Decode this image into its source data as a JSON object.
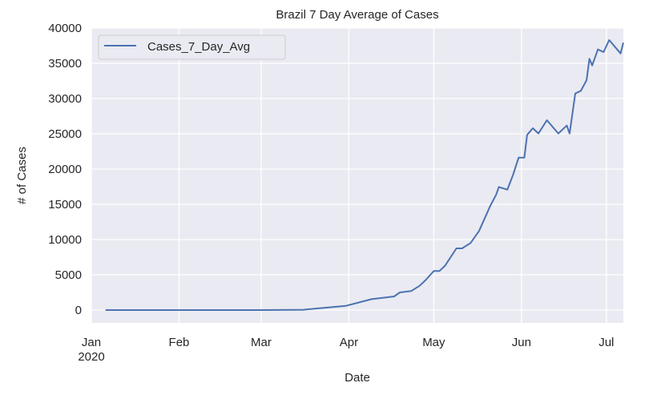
{
  "chart_data": {
    "type": "line",
    "title": "Brazil 7 Day Average of Cases",
    "xlabel": "Date",
    "ylabel": "# of Cases",
    "ylim": [
      -1800,
      40000
    ],
    "xlim": [
      "2020-01-01",
      "2020-07-07"
    ],
    "grid": true,
    "legend": {
      "position": "top-left",
      "entries": [
        "Cases_7_Day_Avg"
      ]
    },
    "yticks": [
      0,
      5000,
      10000,
      15000,
      20000,
      25000,
      30000,
      35000,
      40000
    ],
    "xticks": [
      {
        "date": "2020-01-01",
        "label": "Jan",
        "sublabel": "2020"
      },
      {
        "date": "2020-02-01",
        "label": "Feb"
      },
      {
        "date": "2020-03-01",
        "label": "Mar"
      },
      {
        "date": "2020-04-01",
        "label": "Apr"
      },
      {
        "date": "2020-05-01",
        "label": "May"
      },
      {
        "date": "2020-06-01",
        "label": "Jun"
      },
      {
        "date": "2020-07-01",
        "label": "Jul"
      }
    ],
    "series": [
      {
        "name": "Cases_7_Day_Avg",
        "color": "#4c72b0",
        "points": [
          [
            "2020-01-06",
            0
          ],
          [
            "2020-03-01",
            0
          ],
          [
            "2020-03-16",
            50
          ],
          [
            "2020-03-31",
            600
          ],
          [
            "2020-04-09",
            1550
          ],
          [
            "2020-04-17",
            1930
          ],
          [
            "2020-04-19",
            2500
          ],
          [
            "2020-04-23",
            2690
          ],
          [
            "2020-04-26",
            3440
          ],
          [
            "2020-04-28",
            4200
          ],
          [
            "2020-05-01",
            5530
          ],
          [
            "2020-05-03",
            5530
          ],
          [
            "2020-05-05",
            6290
          ],
          [
            "2020-05-09",
            8750
          ],
          [
            "2020-05-11",
            8750
          ],
          [
            "2020-05-14",
            9510
          ],
          [
            "2020-05-17",
            11220
          ],
          [
            "2020-05-21",
            14810
          ],
          [
            "2020-05-23",
            16330
          ],
          [
            "2020-05-24",
            17460
          ],
          [
            "2020-05-27",
            17080
          ],
          [
            "2020-05-29",
            19170
          ],
          [
            "2020-05-31",
            21630
          ],
          [
            "2020-06-02",
            21630
          ],
          [
            "2020-06-03",
            24850
          ],
          [
            "2020-06-05",
            25800
          ],
          [
            "2020-06-07",
            25040
          ],
          [
            "2020-06-10",
            26930
          ],
          [
            "2020-06-14",
            25040
          ],
          [
            "2020-06-17",
            26170
          ],
          [
            "2020-06-18",
            25040
          ],
          [
            "2020-06-20",
            30720
          ],
          [
            "2020-06-22",
            31100
          ],
          [
            "2020-06-24",
            32610
          ],
          [
            "2020-06-25",
            35640
          ],
          [
            "2020-06-26",
            34690
          ],
          [
            "2020-06-28",
            36970
          ],
          [
            "2020-06-30",
            36590
          ],
          [
            "2020-07-02",
            38290
          ],
          [
            "2020-07-04",
            37350
          ],
          [
            "2020-07-06",
            36400
          ],
          [
            "2020-07-07",
            37920
          ]
        ]
      }
    ]
  }
}
